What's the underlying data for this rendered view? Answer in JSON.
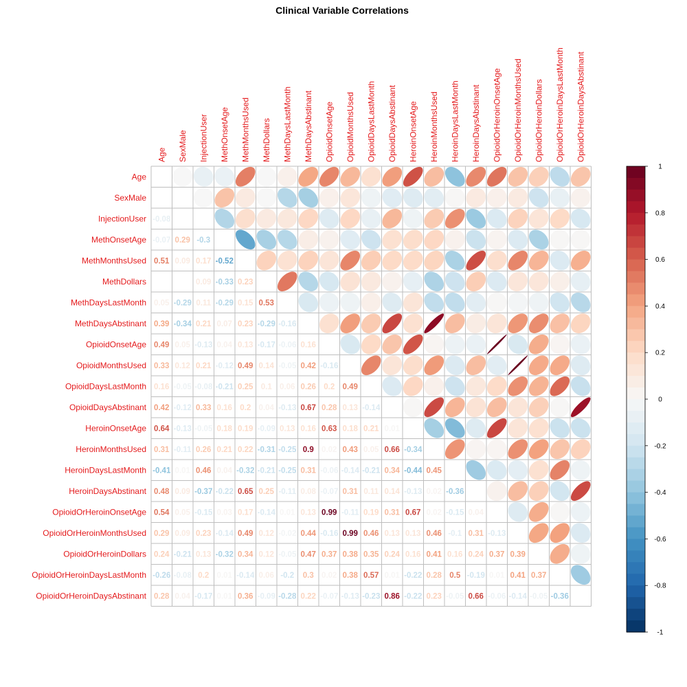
{
  "chart_data": {
    "type": "heatmap",
    "title": "Clinical Variable Correlations",
    "variables": [
      "Age",
      "SexMale",
      "InjectionUser",
      "MethOnsetAge",
      "MethMonthsUsed",
      "MethDollars",
      "MethDaysLastMonth",
      "MethDaysAbstinant",
      "OpioidOnsetAge",
      "OpioidMonthsUsed",
      "OpioidDaysLastMonth",
      "OpioidDaysAbstinant",
      "HeroinOnsetAge",
      "HeroinMonthsUsed",
      "HeroinDaysLastMonth",
      "HeroinDaysAbstinant",
      "OpioidOrHeroinOnsetAge",
      "OpioidOrHeroinMonthsUsed",
      "OpioidOrHeroinDollars",
      "OpioidOrHeroinDaysLastMonth",
      "OpioidOrHeroinDaysAbstinant"
    ],
    "lower_triangle_style": "number",
    "upper_triangle_style": "ellipse",
    "lower_rows": [
      [],
      [
        0.0
      ],
      [
        -0.08,
        0.0
      ],
      [
        -0.07,
        0.29,
        -0.3
      ],
      [
        0.51,
        0.09,
        0.17,
        -0.52
      ],
      [
        0.0,
        0.0,
        0.09,
        -0.33,
        0.23
      ],
      [
        0.05,
        -0.29,
        0.11,
        -0.29,
        0.15,
        0.53
      ],
      [
        0.39,
        -0.34,
        0.21,
        0.07,
        0.23,
        -0.29,
        -0.16
      ],
      [
        0.49,
        0.05,
        -0.13,
        0.04,
        0.13,
        -0.17,
        -0.06,
        0.16
      ],
      [
        0.33,
        0.12,
        0.21,
        -0.12,
        0.49,
        0.14,
        -0.05,
        0.42,
        -0.16
      ],
      [
        0.16,
        -0.05,
        -0.08,
        -0.21,
        0.25,
        0.1,
        0.06,
        0.26,
        0.2,
        0.49
      ],
      [
        0.42,
        -0.12,
        0.33,
        0.16,
        0.2,
        0.04,
        -0.13,
        0.67,
        0.28,
        0.13,
        -0.14
      ],
      [
        0.64,
        -0.13,
        -0.05,
        0.18,
        0.19,
        -0.09,
        0.13,
        0.16,
        0.63,
        0.18,
        0.21,
        0.01
      ],
      [
        0.31,
        -0.11,
        0.26,
        0.21,
        0.22,
        -0.31,
        -0.25,
        0.9,
        0.02,
        0.43,
        0.05,
        0.66,
        -0.34
      ],
      [
        -0.41,
        0.01,
        0.46,
        0.04,
        -0.32,
        -0.21,
        -0.25,
        0.31,
        -0.06,
        -0.14,
        -0.21,
        0.34,
        -0.44,
        0.45
      ],
      [
        0.48,
        0.09,
        -0.37,
        -0.22,
        0.65,
        0.25,
        -0.11,
        0.08,
        -0.07,
        0.31,
        0.11,
        0.14,
        -0.13,
        0.02,
        -0.36
      ],
      [
        0.54,
        0.05,
        -0.15,
        0.03,
        0.17,
        -0.14,
        0.01,
        0.13,
        0.99,
        -0.11,
        0.19,
        0.31,
        0.67,
        0.02,
        -0.15,
        0.04
      ],
      [
        0.29,
        0.09,
        0.23,
        -0.14,
        0.49,
        0.12,
        -0.02,
        0.44,
        -0.16,
        0.99,
        0.46,
        0.13,
        0.13,
        0.46,
        -0.1,
        0.31,
        -0.13
      ],
      [
        0.24,
        -0.21,
        0.13,
        -0.32,
        0.34,
        0.12,
        -0.05,
        0.47,
        0.37,
        0.38,
        0.35,
        0.24,
        0.16,
        0.41,
        0.16,
        0.24,
        0.37,
        0.39
      ],
      [
        -0.26,
        -0.08,
        0.2,
        0.01,
        -0.14,
        0.06,
        -0.2,
        0.3,
        0.02,
        0.38,
        0.57,
        0.01,
        -0.22,
        0.28,
        0.5,
        -0.19,
        0.01,
        0.41,
        0.37
      ],
      [
        0.28,
        0.04,
        -0.17,
        0.01,
        0.36,
        -0.09,
        -0.28,
        0.22,
        -0.07,
        -0.13,
        -0.23,
        0.86,
        -0.22,
        0.23,
        -0.05,
        0.66,
        -0.06,
        -0.14,
        -0.05,
        -0.36
      ]
    ],
    "color_range": [
      -1,
      1
    ],
    "colorbar_ticks": [
      "1",
      "0.8",
      "0.6",
      "0.4",
      "0.2",
      "0",
      "-0.2",
      "-0.4",
      "-0.6",
      "-0.8",
      "-1"
    ],
    "colorbar_tick_values": [
      1,
      0.8,
      0.6,
      0.4,
      0.2,
      0,
      -0.2,
      -0.4,
      -0.6,
      -0.8,
      -1
    ],
    "label_color": "#e41a1c",
    "grid_color": "#bebebe",
    "palette": [
      "#053061",
      "#2166ac",
      "#4393c3",
      "#92c5de",
      "#d1e5f0",
      "#f7f7f7",
      "#fddbc7",
      "#f4a582",
      "#d6604d",
      "#b2182b",
      "#67001f"
    ]
  }
}
